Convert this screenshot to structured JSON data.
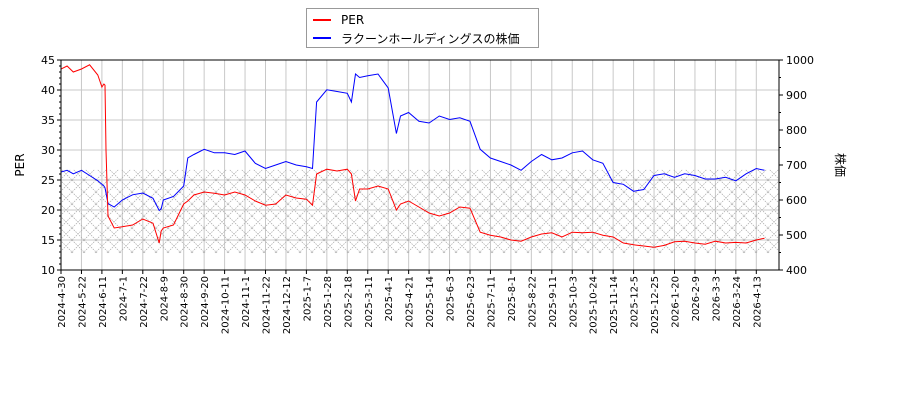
{
  "chart_data": {
    "type": "line",
    "title": "",
    "xlabel": "",
    "ylabel": "PER",
    "y2label": "株価",
    "ylim": [
      10,
      45
    ],
    "y2lim": [
      400,
      1000
    ],
    "yticks": [
      10,
      15,
      20,
      25,
      30,
      35,
      40,
      45
    ],
    "y2ticks": [
      400,
      500,
      600,
      700,
      800,
      900,
      1000
    ],
    "grid": true,
    "legend_position": "top-center",
    "x_tick_labels": [
      "2024-4-30",
      "2024-5-22",
      "2024-6-11",
      "2024-7-1",
      "2024-7-22",
      "2024-8-9",
      "2024-8-30",
      "2024-9-20",
      "2024-10-11",
      "2024-11-1",
      "2024-11-22",
      "2024-12-12",
      "2025-1-7",
      "2025-1-28",
      "2025-2-18",
      "2025-3-11",
      "2025-4-1",
      "2025-4-21",
      "2025-5-14",
      "2025-6-3",
      "2025-6-23",
      "2025-7-11",
      "2025-8-1",
      "2025-8-22",
      "2025-9-11",
      "2025-10-3",
      "2025-10-24",
      "2025-11-14",
      "2025-12-5",
      "2025-12-25",
      "2026-1-20",
      "2026-2-9",
      "2026-3-3",
      "2026-3-24",
      "2026-4-13"
    ],
    "hatched_band": {
      "y_per_from": 12.8,
      "y_per_to": 26.7
    },
    "series": [
      {
        "name": "PER",
        "color": "#ff0000",
        "axis": "left",
        "x_tick_index": [
          0,
          0.3,
          0.6,
          1,
          1.4,
          1.8,
          2,
          2.1,
          2.15,
          2.2,
          2.3,
          2.6,
          3,
          3.5,
          4,
          4.5,
          4.8,
          4.9,
          5,
          5.5,
          6,
          6.2,
          6.5,
          7,
          7.5,
          8,
          8.5,
          9,
          9.5,
          10,
          10.5,
          11,
          11.5,
          12,
          12.3,
          12.5,
          13,
          13.5,
          14,
          14.2,
          14.4,
          14.6,
          15,
          15.5,
          16,
          16.4,
          16.6,
          17,
          17.5,
          18,
          18.5,
          19,
          19.5,
          20,
          20.5,
          21,
          21.5,
          22,
          22.5,
          23,
          23.5,
          24,
          24.5,
          25,
          25.5,
          26,
          26.5,
          27,
          27.5,
          28,
          28.5,
          29,
          29.5,
          30,
          30.5,
          31,
          31.5,
          32,
          32.5,
          33,
          33.5,
          34,
          34.4
        ],
        "values": [
          43.5,
          44,
          43,
          43.5,
          44.2,
          42.5,
          40.5,
          41,
          40.8,
          30,
          19,
          17,
          17.2,
          17.5,
          18.5,
          17.8,
          14.5,
          16.5,
          17,
          17.5,
          21,
          21.5,
          22.5,
          23,
          22.8,
          22.5,
          23,
          22.5,
          21.5,
          20.8,
          21,
          22.5,
          22,
          21.8,
          20.8,
          26,
          26.8,
          26.5,
          26.8,
          26,
          21.5,
          23.5,
          23.5,
          24,
          23.5,
          20,
          21,
          21.5,
          20.5,
          19.5,
          19,
          19.5,
          20.5,
          20.3,
          16.3,
          15.8,
          15.5,
          15,
          14.8,
          15.5,
          16,
          16.2,
          15.5,
          16.3,
          16.2,
          16.3,
          15.8,
          15.5,
          14.5,
          14.2,
          14.0,
          13.8,
          14.1,
          14.7,
          14.8,
          14.5,
          14.3,
          14.8,
          14.5,
          14.6,
          14.5,
          15.0,
          15.3
        ]
      },
      {
        "name": "ラクーンホールディングスの株価",
        "color": "#0000ff",
        "axis": "right",
        "x_tick_index": [
          0,
          0.3,
          0.6,
          1,
          1.4,
          1.8,
          2,
          2.1,
          2.15,
          2.2,
          2.3,
          2.6,
          3,
          3.5,
          4,
          4.5,
          4.8,
          4.9,
          5,
          5.5,
          6,
          6.2,
          6.5,
          7,
          7.5,
          8,
          8.5,
          9,
          9.5,
          10,
          10.5,
          11,
          11.5,
          12,
          12.3,
          12.5,
          13,
          13.5,
          14,
          14.2,
          14.4,
          14.6,
          15,
          15.5,
          16,
          16.4,
          16.6,
          17,
          17.5,
          18,
          18.5,
          19,
          19.5,
          20,
          20.5,
          21,
          21.5,
          22,
          22.5,
          23,
          23.5,
          24,
          24.5,
          25,
          25.5,
          26,
          26.5,
          27,
          27.5,
          28,
          28.5,
          29,
          29.5,
          30,
          30.5,
          31,
          31.5,
          32,
          32.5,
          33,
          33.5,
          34,
          34.4
        ],
        "values": [
          680,
          685,
          675,
          685,
          670,
          655,
          645,
          640,
          635,
          620,
          590,
          580,
          600,
          615,
          620,
          605,
          570,
          575,
          600,
          610,
          640,
          720,
          730,
          745,
          735,
          735,
          730,
          740,
          705,
          690,
          700,
          710,
          700,
          695,
          690,
          880,
          915,
          910,
          905,
          880,
          960,
          950,
          955,
          960,
          920,
          790,
          840,
          850,
          825,
          820,
          840,
          830,
          835,
          825,
          745,
          720,
          710,
          700,
          685,
          710,
          730,
          715,
          720,
          735,
          740,
          715,
          705,
          650,
          645,
          625,
          630,
          670,
          675,
          665,
          675,
          670,
          660,
          660,
          665,
          655,
          675,
          690,
          685
        ]
      }
    ]
  },
  "legend": {
    "items": [
      {
        "label": "PER",
        "color": "#ff0000"
      },
      {
        "label": "ラクーンホールディングスの株価",
        "color": "#0000ff"
      }
    ]
  },
  "axes": {
    "left_label": "PER",
    "right_label": "株価"
  }
}
